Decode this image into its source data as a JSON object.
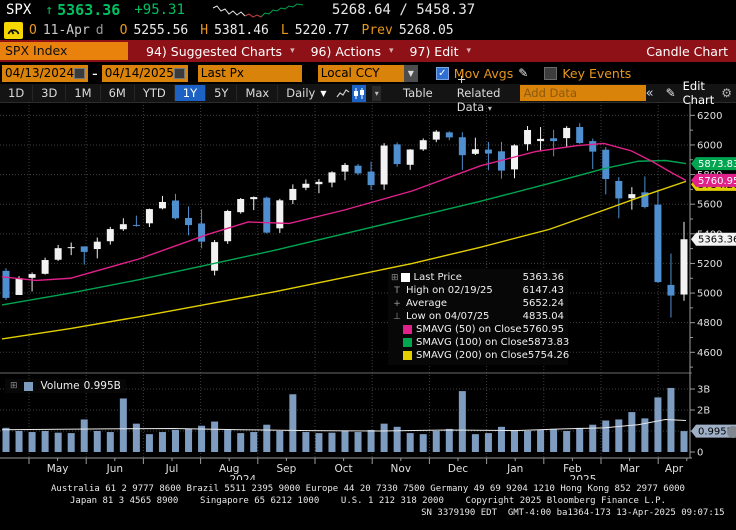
{
  "header": {
    "symbol": "SPX",
    "arrow": "↑",
    "last": "5363.36",
    "change": "+95.31",
    "range": "5268.64 / 5458.37",
    "spark": {
      "white": "2,7 6,5 10,10 14,8 18,13 22,10 26,14 30,11 34,15",
      "red": "34,15 38,13 42,16 46,14 50,16",
      "green": "50,16 54,12 58,13 62,9 66,10 70,7 74,8 78,5 82,6 86,3 92,4"
    },
    "open_marker": "O",
    "date": "11-Apr",
    "freq_flag": "d",
    "o_label": "O",
    "open": "5255.56",
    "h_label": "H",
    "high": "5381.46",
    "l_label": "L",
    "low": "5220.77",
    "prev_label": "Prev",
    "prev": "5268.05"
  },
  "menubar": {
    "security_tab": "SPX Index",
    "items": [
      "94) Suggested Charts",
      "96) Actions",
      "97) Edit"
    ],
    "caret": "▾",
    "chart_name": "Candle Chart"
  },
  "toolbar": {
    "date_from": "04/13/2024",
    "date_sep": "-",
    "date_to": "04/14/2025",
    "price_field": "Last Px",
    "currency_field": "Local CCY",
    "dropdown_caret": "▼",
    "mov_avgs_label": "Mov Avgs",
    "check_glyph": "✓",
    "pencil_glyph": "✎",
    "key_events_label": "Key Events"
  },
  "periodbar": {
    "ranges": [
      "1D",
      "3D",
      "1M",
      "6M",
      "YTD",
      "1Y",
      "5Y",
      "Max"
    ],
    "active_range": "1Y",
    "frequency": "Daily",
    "freq_caret": "▼",
    "icon_caret": "▾",
    "table_label": "Table",
    "related_label": "+ Related Data",
    "related_caret": "▾",
    "add_data_placeholder": "Add Data",
    "collapse_glyph": "«",
    "edit_pencil": "✎",
    "edit_chart_label": "Edit Chart",
    "gear_glyph": "⚙"
  },
  "legend": {
    "expander": "⊞",
    "rows": [
      {
        "icon": "sw",
        "color": "#ffffff",
        "label": "Last Price",
        "value": "5363.36"
      },
      {
        "icon": "T",
        "color": "",
        "label": "High on 02/19/25",
        "value": "6147.43"
      },
      {
        "icon": "+",
        "color": "",
        "label": "Average",
        "value": "5652.24"
      },
      {
        "icon": "⊥",
        "color": "",
        "label": "Low on 04/07/25",
        "value": "4835.04"
      },
      {
        "icon": "sw",
        "color": "#e0218a",
        "label": "SMAVG (50)  on Close",
        "value": "5760.95"
      },
      {
        "icon": "sw",
        "color": "#00a550",
        "label": "SMAVG (100)  on Close",
        "value": "5873.83"
      },
      {
        "icon": "sw",
        "color": "#e3cf00",
        "label": "SMAVG (200)  on Close",
        "value": "5754.26"
      }
    ]
  },
  "volume_legend": {
    "expander": "⊞",
    "color": "#7e9cc0",
    "label": "Volume",
    "value": "0.995B"
  },
  "chart_data": {
    "type": "candlestick",
    "title": "SPX Index 1Y Daily Candle Chart",
    "ylim": [
      4467,
      6290
    ],
    "yticks": [
      4600,
      4800,
      5000,
      5200,
      5400,
      5600,
      5800,
      6000,
      6200
    ],
    "candles": [
      [
        5150,
        5168,
        4953,
        4967
      ],
      [
        4987,
        5114,
        4990,
        5100
      ],
      [
        5103,
        5139,
        5011,
        5128
      ],
      [
        5130,
        5239,
        5125,
        5223
      ],
      [
        5225,
        5325,
        5217,
        5303
      ],
      [
        5305,
        5341,
        5256,
        5310
      ],
      [
        5315,
        5315,
        5192,
        5278
      ],
      [
        5297,
        5375,
        5234,
        5347
      ],
      [
        5350,
        5447,
        5327,
        5432
      ],
      [
        5431,
        5505,
        5420,
        5465
      ],
      [
        5460,
        5523,
        5448,
        5455
      ],
      [
        5471,
        5570,
        5446,
        5567
      ],
      [
        5572,
        5656,
        5565,
        5615
      ],
      [
        5625,
        5670,
        5497,
        5505
      ],
      [
        5507,
        5585,
        5390,
        5459
      ],
      [
        5470,
        5566,
        5302,
        5347
      ],
      [
        5151,
        5358,
        5119,
        5344
      ],
      [
        5350,
        5562,
        5332,
        5554
      ],
      [
        5546,
        5642,
        5536,
        5635
      ],
      [
        5634,
        5652,
        5560,
        5648
      ],
      [
        5644,
        5651,
        5402,
        5408
      ],
      [
        5437,
        5636,
        5406,
        5626
      ],
      [
        5628,
        5734,
        5601,
        5703
      ],
      [
        5711,
        5767,
        5695,
        5738
      ],
      [
        5735,
        5770,
        5674,
        5751
      ],
      [
        5746,
        5822,
        5714,
        5815
      ],
      [
        5820,
        5878,
        5762,
        5865
      ],
      [
        5860,
        5872,
        5797,
        5808
      ],
      [
        5820,
        5887,
        5696,
        5729
      ],
      [
        5733,
        6012,
        5697,
        5996
      ],
      [
        6004,
        6017,
        5853,
        5871
      ],
      [
        5866,
        5972,
        5832,
        5969
      ],
      [
        5970,
        6044,
        5960,
        6032
      ],
      [
        6036,
        6100,
        6019,
        6090
      ],
      [
        6085,
        6092,
        6032,
        6051
      ],
      [
        6052,
        6086,
        5832,
        5931
      ],
      [
        5940,
        6049,
        5932,
        5971
      ],
      [
        5969,
        6020,
        5829,
        5942
      ],
      [
        5957,
        6021,
        5773,
        5827
      ],
      [
        5835,
        6004,
        5775,
        5997
      ],
      [
        6005,
        6128,
        5962,
        6101
      ],
      [
        6026,
        6121,
        5962,
        6041
      ],
      [
        6045,
        6102,
        5923,
        6026
      ],
      [
        6046,
        6127,
        5986,
        6115
      ],
      [
        6121,
        6147.43,
        6008,
        6013
      ],
      [
        6026,
        6043,
        5837,
        5955
      ],
      [
        5968,
        5986,
        5666,
        5770
      ],
      [
        5757,
        5783,
        5505,
        5639
      ],
      [
        5640,
        5715,
        5563,
        5668
      ],
      [
        5680,
        5787,
        5571,
        5581
      ],
      [
        5597,
        5695,
        5069,
        5074
      ],
      [
        5055,
        5267,
        4835.04,
        4983
      ],
      [
        4990,
        5481,
        4948,
        5363.36
      ]
    ],
    "volumes": [
      1.15,
      1.0,
      0.95,
      1.0,
      0.92,
      0.9,
      1.55,
      1.0,
      0.95,
      2.55,
      1.35,
      0.85,
      0.95,
      1.05,
      1.1,
      1.25,
      1.45,
      1.05,
      0.9,
      0.95,
      1.3,
      1.0,
      2.75,
      0.95,
      0.9,
      0.92,
      1.0,
      0.95,
      1.05,
      1.35,
      1.2,
      0.9,
      0.85,
      1.0,
      1.1,
      2.9,
      0.85,
      0.9,
      1.2,
      1.05,
      1.0,
      1.05,
      1.1,
      1.0,
      1.15,
      1.3,
      1.5,
      1.55,
      1.9,
      1.6,
      2.6,
      3.05,
      0.995
    ],
    "vol_ticks": [
      {
        "v": 0,
        "label": "0"
      },
      {
        "v": 1,
        "label": "1B"
      },
      {
        "v": 2,
        "label": "2B"
      },
      {
        "v": 3,
        "label": "3B"
      }
    ],
    "ma50": {
      "name": "SMAVG (50) on Close",
      "color": "#e0218a",
      "points": [
        [
          0,
          5110
        ],
        [
          0.05,
          5085
        ],
        [
          0.1,
          5100
        ],
        [
          0.2,
          5230
        ],
        [
          0.3,
          5395
        ],
        [
          0.36,
          5480
        ],
        [
          0.42,
          5470
        ],
        [
          0.5,
          5560
        ],
        [
          0.6,
          5690
        ],
        [
          0.7,
          5860
        ],
        [
          0.78,
          5955
        ],
        [
          0.84,
          5995
        ],
        [
          0.88,
          6010
        ],
        [
          0.92,
          5960
        ],
        [
          0.95,
          5890
        ],
        [
          0.98,
          5810
        ],
        [
          1,
          5761
        ]
      ]
    },
    "ma100": {
      "name": "SMAVG (100) on Close",
      "color": "#00a550",
      "points": [
        [
          0,
          4920
        ],
        [
          0.1,
          5000
        ],
        [
          0.2,
          5090
        ],
        [
          0.3,
          5190
        ],
        [
          0.4,
          5290
        ],
        [
          0.5,
          5400
        ],
        [
          0.6,
          5510
        ],
        [
          0.7,
          5620
        ],
        [
          0.8,
          5740
        ],
        [
          0.88,
          5840
        ],
        [
          0.93,
          5890
        ],
        [
          0.97,
          5895
        ],
        [
          1,
          5874
        ]
      ]
    },
    "ma200": {
      "name": "SMAVG (200) on Close",
      "color": "#e3cf00",
      "points": [
        [
          0,
          4690
        ],
        [
          0.1,
          4760
        ],
        [
          0.2,
          4840
        ],
        [
          0.3,
          4925
        ],
        [
          0.4,
          5010
        ],
        [
          0.5,
          5105
        ],
        [
          0.6,
          5200
        ],
        [
          0.7,
          5310
        ],
        [
          0.8,
          5430
        ],
        [
          0.88,
          5560
        ],
        [
          0.94,
          5660
        ],
        [
          1,
          5754
        ]
      ]
    },
    "vol_ma": [
      [
        0,
        1.06
      ],
      [
        0.15,
        1.1
      ],
      [
        0.25,
        1.12
      ],
      [
        0.35,
        1.06
      ],
      [
        0.45,
        1.02
      ],
      [
        0.55,
        1.0
      ],
      [
        0.65,
        1.05
      ],
      [
        0.75,
        1.02
      ],
      [
        0.82,
        1.1
      ],
      [
        0.88,
        1.15
      ],
      [
        0.93,
        1.3
      ],
      [
        0.97,
        1.55
      ],
      [
        1,
        1.5
      ]
    ],
    "months": [
      "May",
      "Jun",
      "Jul",
      "Aug",
      "Sep",
      "Oct",
      "Nov",
      "Dec",
      "Jan",
      "Feb",
      "Mar",
      "Apr"
    ],
    "years": [
      {
        "label": "2024",
        "t": 0.352
      },
      {
        "label": "2025",
        "t": 0.845
      }
    ],
    "badges": [
      {
        "value": 5754.26,
        "label": "5754.26",
        "bg": "#e3cf00",
        "fg": "#000000",
        "offset": 3
      },
      {
        "value": 5873.83,
        "label": "5873.83",
        "bg": "#00a550",
        "fg": "#ffffff",
        "offset": 0
      },
      {
        "value": 5760.95,
        "label": "5760.95",
        "bg": "#e0218a",
        "fg": "#ffffff",
        "offset": 0
      },
      {
        "value": 5363.36,
        "label": "5363.36",
        "bg": "#f2f2f2",
        "fg": "#000000",
        "offset": 0
      }
    ],
    "vol_badge": {
      "value": 0.995,
      "label": "0.995B",
      "bg": "#9fb0c6",
      "fg": "#000000"
    },
    "colors": {
      "up": "#f2f2f2",
      "down": "#4f8fd0",
      "volume": "#7e9cc0",
      "grid": "#3f3f3f",
      "axis_text": "#e0e0e0",
      "vol_ma_line": "#e8e8e8"
    }
  },
  "footer": {
    "line1": "Australia 61 2 9777 8600 Brazil 5511 2395 9000 Europe 44 20 7330 7500 Germany 49 69 9204 1210 Hong Kong 852 2977 6000",
    "line2": "Japan 81 3 4565 8900    Singapore 65 6212 1000    U.S. 1 212 318 2000    Copyright 2025 Bloomberg Finance L.P.",
    "line3": "SN 3379190 EDT  GMT-4:00 ba1364-173 13-Apr-2025 09:07:15 "
  }
}
